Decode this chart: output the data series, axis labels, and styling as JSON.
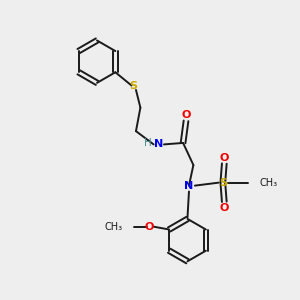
{
  "background_color": "#eeeeee",
  "bond_color": "#1a1a1a",
  "S_color": "#ccaa00",
  "N_color": "#0000ee",
  "O_color": "#ee0000",
  "H_color": "#4a9090",
  "figsize": [
    3.0,
    3.0
  ],
  "dpi": 100,
  "xlim": [
    0,
    10
  ],
  "ylim": [
    0,
    10
  ]
}
